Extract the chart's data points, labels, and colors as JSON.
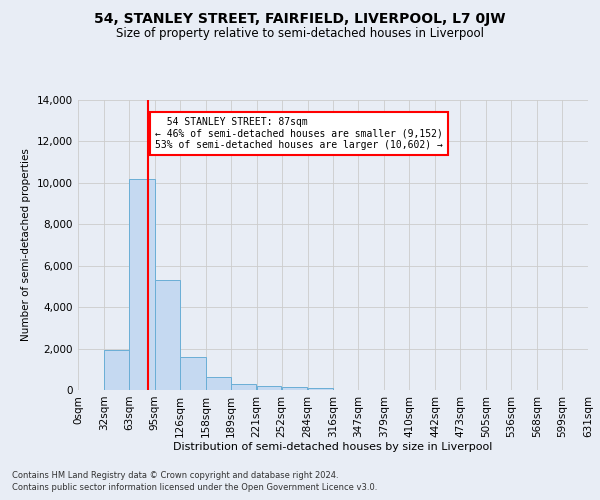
{
  "title": "54, STANLEY STREET, FAIRFIELD, LIVERPOOL, L7 0JW",
  "subtitle": "Size of property relative to semi-detached houses in Liverpool",
  "xlabel": "Distribution of semi-detached houses by size in Liverpool",
  "ylabel": "Number of semi-detached properties",
  "footnote1": "Contains HM Land Registry data © Crown copyright and database right 2024.",
  "footnote2": "Contains public sector information licensed under the Open Government Licence v3.0.",
  "property_label": "54 STANLEY STREET: 87sqm",
  "smaller_pct": "46% of semi-detached houses are smaller (9,152)",
  "larger_pct": "53% of semi-detached houses are larger (10,602)",
  "property_sqm": 87,
  "bin_edges": [
    0,
    32,
    63,
    95,
    126,
    158,
    189,
    221,
    252,
    284,
    316,
    347,
    379,
    410,
    442,
    473,
    505,
    536,
    568,
    599,
    631
  ],
  "bar_heights": [
    0,
    1950,
    10200,
    5300,
    1580,
    620,
    290,
    175,
    130,
    100,
    0,
    0,
    0,
    0,
    0,
    0,
    0,
    0,
    0,
    0
  ],
  "bar_color": "#c5d9f1",
  "bar_edge_color": "#6aaed6",
  "vline_color": "red",
  "vline_x": 87,
  "ylim": [
    0,
    14000
  ],
  "yticks": [
    0,
    2000,
    4000,
    6000,
    8000,
    10000,
    12000,
    14000
  ],
  "grid_color": "#cccccc",
  "bg_color": "#e8edf5",
  "annotation_box_color": "white",
  "annotation_box_edge": "red"
}
